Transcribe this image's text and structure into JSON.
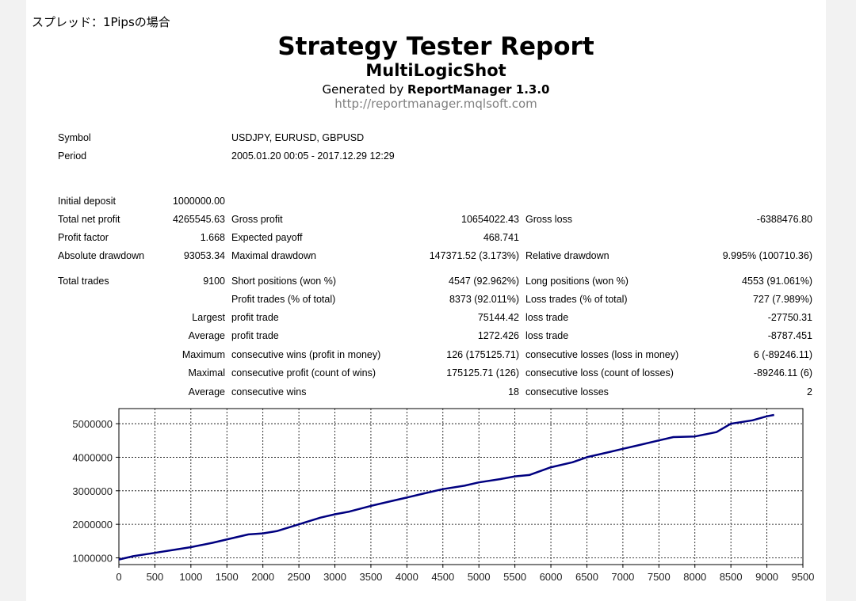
{
  "note": "スプレッド：1Pipsの場合",
  "header": {
    "title": "Strategy Tester Report",
    "subtitle": "MultiLogicShot",
    "generated_prefix": "Generated by ",
    "generated_name": "ReportManager 1.3.0",
    "url": "http://reportmanager.mqlsoft.com"
  },
  "info": {
    "symbol_label": "Symbol",
    "symbol_value": "USDJPY, EURUSD, GBPUSD",
    "period_label": "Period",
    "period_value": "2005.01.20 00:05 - 2017.12.29 12:29"
  },
  "stats": {
    "initial_deposit_label": "Initial deposit",
    "initial_deposit_value": "1000000.00",
    "total_net_profit_label": "Total net profit",
    "total_net_profit_value": "4265545.63",
    "gross_profit_label": "Gross profit",
    "gross_profit_value": "10654022.43",
    "gross_loss_label": "Gross loss",
    "gross_loss_value": "-6388476.80",
    "profit_factor_label": "Profit factor",
    "profit_factor_value": "1.668",
    "expected_payoff_label": "Expected payoff",
    "expected_payoff_value": "468.741",
    "absolute_drawdown_label": "Absolute drawdown",
    "absolute_drawdown_value": "93053.34",
    "maximal_drawdown_label": "Maximal drawdown",
    "maximal_drawdown_value": "147371.52 (3.173%)",
    "relative_drawdown_label": "Relative drawdown",
    "relative_drawdown_value": "9.995% (100710.36)"
  },
  "trades": {
    "total_trades_label": "Total trades",
    "total_trades_value": "9100",
    "short_positions_label": "Short positions (won %)",
    "short_positions_value": "4547 (92.962%)",
    "long_positions_label": "Long positions (won %)",
    "long_positions_value": "4553 (91.061%)",
    "profit_trades_label": "Profit trades (% of total)",
    "profit_trades_value": "8373 (92.011%)",
    "loss_trades_label": "Loss trades (% of total)",
    "loss_trades_value": "727 (7.989%)",
    "largest_label": "Largest",
    "largest_profit_label": "profit trade",
    "largest_profit_value": "75144.42",
    "largest_loss_label": "loss trade",
    "largest_loss_value": "-27750.31",
    "average_label": "Average",
    "average_profit_label": "profit trade",
    "average_profit_value": "1272.426",
    "average_loss_label": "loss trade",
    "average_loss_value": "-8787.451",
    "maximum_label": "Maximum",
    "max_consec_wins_label": "consecutive wins (profit in money)",
    "max_consec_wins_value": "126 (175125.71)",
    "max_consec_losses_label": "consecutive losses (loss in money)",
    "max_consec_losses_value": "6 (-89246.11)",
    "maximal_label": "Maximal",
    "maximal_consec_profit_label": "consecutive profit (count of wins)",
    "maximal_consec_profit_value": "175125.71 (126)",
    "maximal_consec_loss_label": "consecutive loss (count of losses)",
    "maximal_consec_loss_value": "-89246.11 (6)",
    "average2_label": "Average",
    "avg_consec_wins_label": "consecutive wins",
    "avg_consec_wins_value": "18",
    "avg_consec_losses_label": "consecutive losses",
    "avg_consec_losses_value": "2"
  },
  "chart_data": {
    "type": "line",
    "title": "",
    "xlabel": "",
    "ylabel": "",
    "xlim": [
      0,
      9500
    ],
    "ylim": [
      800000,
      5450000
    ],
    "x_ticks": [
      0,
      500,
      1000,
      1500,
      2000,
      2500,
      3000,
      3500,
      4000,
      4500,
      5000,
      5500,
      6000,
      6500,
      7000,
      7500,
      8000,
      8500,
      9000,
      9500
    ],
    "y_ticks": [
      1000000,
      2000000,
      3000000,
      4000000,
      5000000
    ],
    "grid": true,
    "line_color": "#000080",
    "series": [
      {
        "x": [
          0,
          200,
          500,
          800,
          1000,
          1300,
          1600,
          1800,
          2000,
          2200,
          2500,
          2800,
          3000,
          3200,
          3500,
          3800,
          4000,
          4200,
          4500,
          4800,
          5000,
          5300,
          5500,
          5700,
          6000,
          6300,
          6500,
          6800,
          7000,
          7200,
          7500,
          7700,
          8000,
          8300,
          8500,
          8800,
          9000,
          9100
        ],
        "y": [
          950000,
          1050000,
          1150000,
          1250000,
          1320000,
          1450000,
          1600000,
          1700000,
          1730000,
          1800000,
          2000000,
          2200000,
          2300000,
          2380000,
          2550000,
          2700000,
          2800000,
          2900000,
          3050000,
          3150000,
          3250000,
          3350000,
          3430000,
          3470000,
          3700000,
          3850000,
          4000000,
          4150000,
          4250000,
          4350000,
          4500000,
          4600000,
          4620000,
          4750000,
          5000000,
          5100000,
          5220000,
          5260000
        ]
      }
    ]
  }
}
